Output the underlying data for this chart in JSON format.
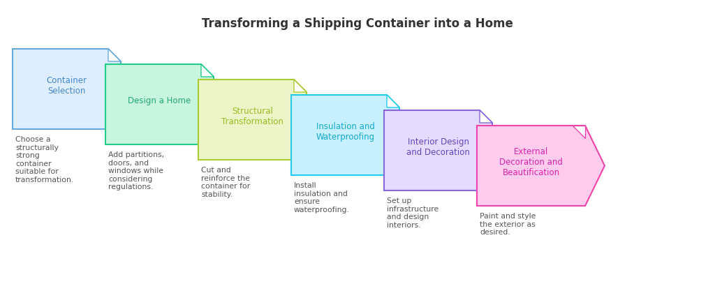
{
  "title": "Transforming a Shipping Container into a Home",
  "title_fontsize": 12,
  "title_color": "#333333",
  "background_color": "#ffffff",
  "steps": [
    {
      "label": "Container\nSelection",
      "description": "Choose a\nstructurally\nstrong\ncontainer\nsuitable for\ntransformation.",
      "fill_color": "#deeeff",
      "edge_color": "#66aadd",
      "text_color": "#4488cc",
      "desc_color": "#555555"
    },
    {
      "label": "Design a Home",
      "description": "Add partitions,\ndoors, and\nwindows while\nconsidering\nregulations.",
      "fill_color": "#c8f5df",
      "edge_color": "#22cc88",
      "text_color": "#22aa77",
      "desc_color": "#555555"
    },
    {
      "label": "Structural\nTransformation",
      "description": "Cut and\nreinforce the\ncontainer for\nstability.",
      "fill_color": "#edf5c8",
      "edge_color": "#aacc33",
      "text_color": "#99bb22",
      "desc_color": "#555555"
    },
    {
      "label": "Insulation and\nWaterproofing",
      "description": "Install\ninsulation and\nensure\nwaterproofing.",
      "fill_color": "#c8f0ff",
      "edge_color": "#22ccee",
      "text_color": "#11aacc",
      "desc_color": "#555555"
    },
    {
      "label": "Interior Design\nand Decoration",
      "description": "Set up\ninfrastructure\nand design\ninteriors.",
      "fill_color": "#e4dcff",
      "edge_color": "#8866dd",
      "text_color": "#6644bb",
      "desc_color": "#555555"
    },
    {
      "label": "External\nDecoration and\nBeautification",
      "description": "Paint and style\nthe exterior as\ndesired.",
      "fill_color": "#ffccee",
      "edge_color": "#ee44aa",
      "text_color": "#dd22aa",
      "desc_color": "#555555",
      "is_arrow": true
    }
  ]
}
